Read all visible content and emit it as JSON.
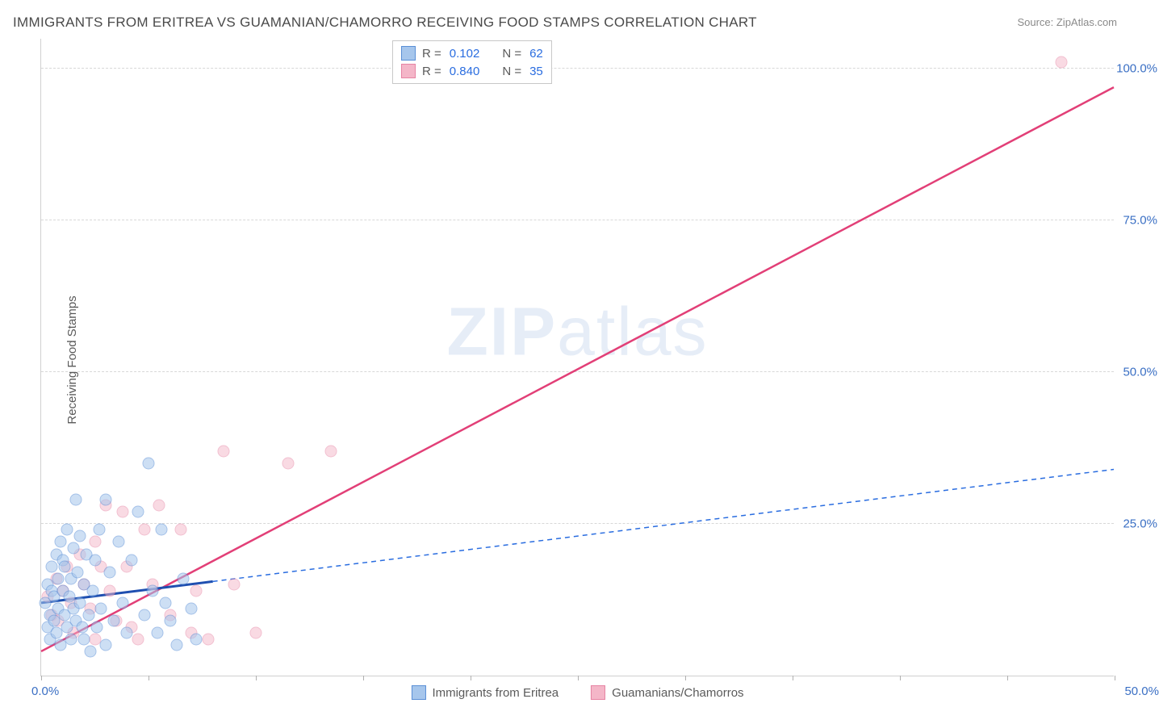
{
  "title": "IMMIGRANTS FROM ERITREA VS GUAMANIAN/CHAMORRO RECEIVING FOOD STAMPS CORRELATION CHART",
  "source": "Source: ZipAtlas.com",
  "watermark_a": "ZIP",
  "watermark_b": "atlas",
  "ylabel": "Receiving Food Stamps",
  "chart": {
    "type": "scatter",
    "xlim": [
      0,
      50
    ],
    "ylim": [
      0,
      105
    ],
    "x_tick_positions_pct": [
      0,
      5,
      10,
      15,
      20,
      25,
      30,
      35,
      40,
      45,
      50
    ],
    "x_axis_labels": {
      "left": "0.0%",
      "right": "50.0%"
    },
    "y_grid": [
      {
        "val": 25.0,
        "label": "25.0%"
      },
      {
        "val": 50.0,
        "label": "50.0%"
      },
      {
        "val": 75.0,
        "label": "75.0%"
      },
      {
        "val": 100.0,
        "label": "100.0%"
      }
    ],
    "background_color": "#ffffff",
    "grid_color": "#d8d8d8",
    "axis_color": "#d0d0d0",
    "tick_label_color": "#3a6fc4",
    "marker_radius": 7.5,
    "series": {
      "blue": {
        "name": "Immigrants from Eritrea",
        "fill": "#a6c6ec",
        "stroke": "#5a8fd6",
        "fill_opacity": 0.55,
        "R": "0.102",
        "N": "62",
        "trend": {
          "x1": 0,
          "y1": 12.0,
          "x2": 50,
          "y2": 34.0,
          "solid_until_x": 8.0,
          "solid_color": "#1f4fb0",
          "solid_width": 3,
          "dash_color": "#2a6de0",
          "dash_width": 1.5,
          "dash_pattern": "6,5"
        },
        "points": [
          [
            0.2,
            12
          ],
          [
            0.3,
            8
          ],
          [
            0.3,
            15
          ],
          [
            0.4,
            6
          ],
          [
            0.4,
            10
          ],
          [
            0.5,
            14
          ],
          [
            0.5,
            18
          ],
          [
            0.6,
            9
          ],
          [
            0.6,
            13
          ],
          [
            0.7,
            20
          ],
          [
            0.7,
            7
          ],
          [
            0.8,
            16
          ],
          [
            0.8,
            11
          ],
          [
            0.9,
            22
          ],
          [
            0.9,
            5
          ],
          [
            1.0,
            14
          ],
          [
            1.0,
            19
          ],
          [
            1.1,
            18
          ],
          [
            1.1,
            10
          ],
          [
            1.2,
            8
          ],
          [
            1.2,
            24
          ],
          [
            1.3,
            13
          ],
          [
            1.4,
            16
          ],
          [
            1.4,
            6
          ],
          [
            1.5,
            21
          ],
          [
            1.5,
            11
          ],
          [
            1.6,
            29
          ],
          [
            1.6,
            9
          ],
          [
            1.7,
            17
          ],
          [
            1.8,
            23
          ],
          [
            1.8,
            12
          ],
          [
            1.9,
            8
          ],
          [
            2.0,
            6
          ],
          [
            2.0,
            15
          ],
          [
            2.1,
            20
          ],
          [
            2.2,
            10
          ],
          [
            2.3,
            4
          ],
          [
            2.4,
            14
          ],
          [
            2.5,
            19
          ],
          [
            2.6,
            8
          ],
          [
            2.7,
            24
          ],
          [
            2.8,
            11
          ],
          [
            3.0,
            29
          ],
          [
            3.0,
            5
          ],
          [
            3.2,
            17
          ],
          [
            3.4,
            9
          ],
          [
            3.6,
            22
          ],
          [
            3.8,
            12
          ],
          [
            4.0,
            7
          ],
          [
            4.2,
            19
          ],
          [
            4.5,
            27
          ],
          [
            4.8,
            10
          ],
          [
            5.0,
            35
          ],
          [
            5.2,
            14
          ],
          [
            5.4,
            7
          ],
          [
            5.6,
            24
          ],
          [
            5.8,
            12
          ],
          [
            6.0,
            9
          ],
          [
            6.3,
            5
          ],
          [
            6.6,
            16
          ],
          [
            7.0,
            11
          ],
          [
            7.2,
            6
          ]
        ]
      },
      "pink": {
        "name": "Guamanians/Chamorros",
        "fill": "#f4b6c8",
        "stroke": "#e683a3",
        "fill_opacity": 0.5,
        "R": "0.840",
        "N": "35",
        "trend": {
          "x1": 0,
          "y1": 4.0,
          "x2": 50,
          "y2": 97.0,
          "solid_color": "#e23f77",
          "solid_width": 2.5
        },
        "points": [
          [
            0.3,
            13
          ],
          [
            0.5,
            10
          ],
          [
            0.7,
            16
          ],
          [
            0.8,
            9
          ],
          [
            1.0,
            14
          ],
          [
            1.2,
            18
          ],
          [
            1.4,
            12
          ],
          [
            1.5,
            7
          ],
          [
            1.8,
            20
          ],
          [
            2.0,
            15
          ],
          [
            2.3,
            11
          ],
          [
            2.5,
            22
          ],
          [
            2.5,
            6
          ],
          [
            2.8,
            18
          ],
          [
            3.0,
            28
          ],
          [
            3.2,
            14
          ],
          [
            3.5,
            9
          ],
          [
            3.8,
            27
          ],
          [
            4.0,
            18
          ],
          [
            4.2,
            8
          ],
          [
            4.5,
            6
          ],
          [
            4.8,
            24
          ],
          [
            5.2,
            15
          ],
          [
            5.5,
            28
          ],
          [
            6.0,
            10
          ],
          [
            6.5,
            24
          ],
          [
            7.0,
            7
          ],
          [
            7.2,
            14
          ],
          [
            7.8,
            6
          ],
          [
            8.5,
            37
          ],
          [
            9.0,
            15
          ],
          [
            10.0,
            7
          ],
          [
            11.5,
            35
          ],
          [
            13.5,
            37
          ],
          [
            47.5,
            101
          ]
        ]
      }
    }
  },
  "stats_labels": {
    "R": "R =",
    "N": "N ="
  },
  "legend": {
    "s1": "Immigrants from Eritrea",
    "s2": "Guamanians/Chamorros"
  }
}
